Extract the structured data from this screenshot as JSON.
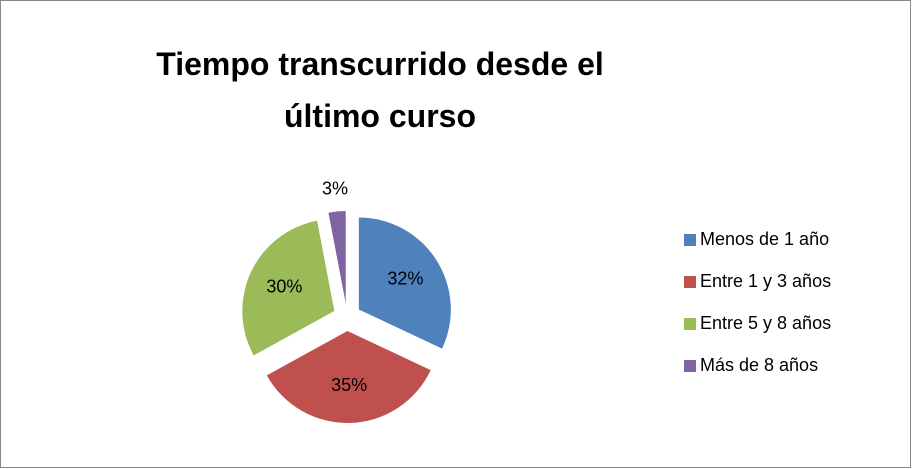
{
  "chart_data": {
    "type": "pie",
    "title": "Tiempo transcurrido desde el último curso",
    "categories": [
      "Menos de 1 año",
      "Entre 1 y 3 años",
      "Entre 5 y 8 años",
      "Más de 8 años"
    ],
    "values": [
      32,
      35,
      30,
      3
    ],
    "value_labels": [
      "32%",
      "35%",
      "30%",
      "3%"
    ],
    "colors": [
      "#4f81bd",
      "#c0504d",
      "#9bbb59",
      "#8064a2"
    ],
    "legend": "right"
  }
}
